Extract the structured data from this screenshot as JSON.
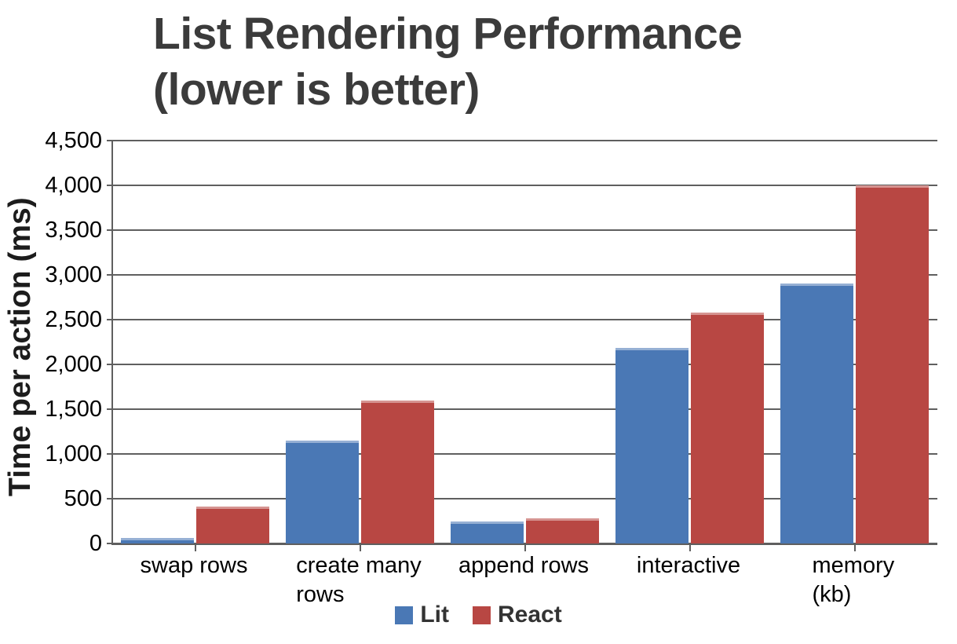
{
  "title_lines": [
    "List Rendering Performance",
    "(lower is better)"
  ],
  "chart_data": {
    "type": "bar",
    "title": "List Rendering Performance (lower is better)",
    "ylabel": "Time per action (ms)",
    "xlabel": "",
    "categories": [
      "swap rows",
      "create many rows",
      "append rows",
      "interactive",
      "memory (kb)"
    ],
    "category_display": [
      "swap rows",
      "create many\nrows",
      "append rows",
      "interactive",
      "memory (kb)"
    ],
    "series": [
      {
        "name": "Lit",
        "color": "#4a78b5",
        "values": [
          60,
          1150,
          250,
          2180,
          2900
        ]
      },
      {
        "name": "React",
        "color": "#b84743",
        "values": [
          415,
          1600,
          280,
          2580,
          4000
        ]
      }
    ],
    "ylim": [
      0,
      4500
    ],
    "ytick_step": 500,
    "ytick_labels": [
      "0",
      "500",
      "1,000",
      "1,500",
      "2,000",
      "2,500",
      "3,000",
      "3,500",
      "4,000",
      "4,500"
    ],
    "grid": true,
    "legend_position": "bottom"
  },
  "colors": {
    "axis": "#5f5f5f",
    "title_text": "#3b3b3b",
    "tick_text": "#000000",
    "legend_text": "#333333",
    "background": "#ffffff",
    "lit_blue": "#4a78b5",
    "react_red": "#b84743"
  }
}
